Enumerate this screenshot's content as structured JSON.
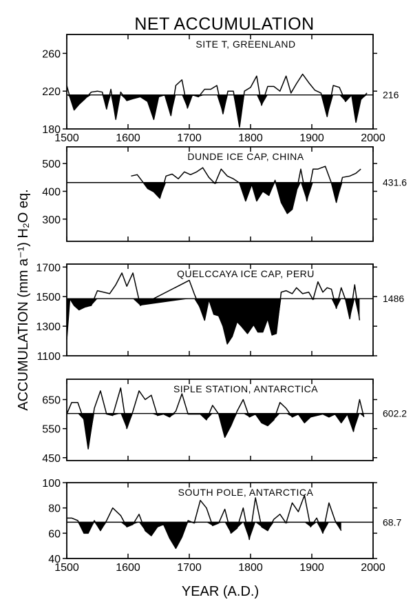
{
  "figure": {
    "title": "NET ACCUMULATION",
    "y_title": "ACCUMULATION (mm a⁻¹) H₂O eq.",
    "x_title": "YEAR (A.D.)"
  },
  "chart_data": [
    {
      "type": "line",
      "title": "SITE T, GREENLAND",
      "mean": 216,
      "mean_label": "216",
      "ylim": [
        180,
        280
      ],
      "yticks": [
        180,
        220,
        260
      ],
      "xlim": [
        1500,
        2000
      ],
      "xticks": [
        1500,
        1600,
        1700,
        1800,
        1900,
        2000
      ],
      "show_x_labels": true,
      "grid": false,
      "fill_below_mean": true,
      "x": [
        1500,
        1505,
        1512,
        1520,
        1530,
        1540,
        1550,
        1558,
        1565,
        1572,
        1580,
        1588,
        1598,
        1608,
        1620,
        1632,
        1642,
        1650,
        1660,
        1670,
        1678,
        1688,
        1697,
        1705,
        1715,
        1725,
        1735,
        1745,
        1755,
        1763,
        1772,
        1782,
        1790,
        1800,
        1810,
        1818,
        1828,
        1838,
        1848,
        1858,
        1866,
        1875,
        1885,
        1895,
        1905,
        1915,
        1925,
        1935,
        1945,
        1955,
        1965,
        1972,
        1980,
        1990
      ],
      "y": [
        226,
        214,
        200,
        206,
        212,
        219,
        220,
        219,
        201,
        222,
        190,
        219,
        210,
        212,
        214,
        209,
        190,
        214,
        216,
        194,
        226,
        232,
        202,
        216,
        214,
        222,
        222,
        226,
        196,
        220,
        220,
        182,
        220,
        224,
        236,
        205,
        225,
        225,
        220,
        236,
        218,
        228,
        238,
        229,
        221,
        218,
        193,
        226,
        224,
        209,
        216,
        187,
        211,
        218
      ]
    },
    {
      "type": "line",
      "title": "DUNDE ICE CAP, CHINA",
      "mean": 431.6,
      "mean_label": "431.6",
      "ylim": [
        220,
        560
      ],
      "yticks": [
        300,
        400,
        500
      ],
      "xlim": [
        1500,
        2000
      ],
      "xticks": [
        1500,
        1600,
        1700,
        1800,
        1900,
        2000
      ],
      "show_x_labels": false,
      "grid": false,
      "fill_below_mean": true,
      "x": [
        1605,
        1615,
        1625,
        1632,
        1642,
        1652,
        1662,
        1672,
        1682,
        1692,
        1702,
        1712,
        1722,
        1732,
        1742,
        1752,
        1762,
        1772,
        1782,
        1792,
        1802,
        1810,
        1820,
        1830,
        1840,
        1850,
        1860,
        1868,
        1875,
        1882,
        1892,
        1902,
        1910,
        1922,
        1932,
        1940,
        1950,
        1962,
        1972,
        1980
      ],
      "y": [
        455,
        460,
        431,
        410,
        398,
        375,
        455,
        462,
        445,
        470,
        460,
        470,
        485,
        450,
        428,
        480,
        455,
        445,
        430,
        365,
        425,
        365,
        400,
        385,
        440,
        360,
        320,
        335,
        400,
        480,
        365,
        480,
        480,
        490,
        430,
        360,
        450,
        455,
        465,
        480
      ]
    },
    {
      "type": "line",
      "title": "QUELCCAYA ICE CAP, PERU",
      "mean": 1486,
      "mean_label": "1486",
      "ylim": [
        1100,
        1720
      ],
      "yticks": [
        1100,
        1300,
        1500,
        1700
      ],
      "xlim": [
        1500,
        2000
      ],
      "xticks": [
        1500,
        1600,
        1700,
        1800,
        1900,
        2000
      ],
      "show_x_labels": false,
      "grid": false,
      "fill_below_mean": true,
      "x": [
        1500,
        1505,
        1512,
        1520,
        1530,
        1540,
        1550,
        1560,
        1570,
        1580,
        1590,
        1598,
        1608,
        1620,
        1700,
        1708,
        1718,
        1725,
        1732,
        1740,
        1748,
        1755,
        1762,
        1770,
        1778,
        1785,
        1795,
        1805,
        1812,
        1820,
        1828,
        1835,
        1842,
        1850,
        1858,
        1868,
        1875,
        1885,
        1895,
        1902,
        1910,
        1918,
        1925,
        1932,
        1940,
        1948,
        1955,
        1962,
        1970,
        1978
      ],
      "y": [
        1210,
        1486,
        1440,
        1410,
        1430,
        1440,
        1540,
        1530,
        1520,
        1580,
        1660,
        1570,
        1660,
        1440,
        1610,
        1520,
        1420,
        1340,
        1480,
        1380,
        1370,
        1300,
        1180,
        1230,
        1330,
        1300,
        1250,
        1310,
        1260,
        1260,
        1350,
        1240,
        1250,
        1530,
        1540,
        1520,
        1560,
        1520,
        1530,
        1480,
        1600,
        1530,
        1560,
        1550,
        1420,
        1560,
        1480,
        1350,
        1580,
        1340
      ]
    },
    {
      "type": "line",
      "title": "SIPLE STATION, ANTARCTICA",
      "mean": 602.2,
      "mean_label": "602.2",
      "ylim": [
        440,
        720
      ],
      "yticks": [
        450,
        550,
        650
      ],
      "xlim": [
        1500,
        2000
      ],
      "xticks": [
        1500,
        1600,
        1700,
        1800,
        1900,
        2000
      ],
      "show_x_labels": false,
      "grid": false,
      "fill_below_mean": true,
      "x": [
        1500,
        1508,
        1518,
        1528,
        1535,
        1545,
        1555,
        1565,
        1575,
        1588,
        1598,
        1608,
        1618,
        1628,
        1638,
        1648,
        1658,
        1668,
        1678,
        1688,
        1698,
        1708,
        1718,
        1728,
        1738,
        1748,
        1758,
        1768,
        1778,
        1788,
        1798,
        1808,
        1818,
        1828,
        1838,
        1848,
        1858,
        1868,
        1878,
        1888,
        1898,
        1908,
        1918,
        1928,
        1938,
        1948,
        1958,
        1968,
        1978,
        1985
      ],
      "y": [
        600,
        640,
        640,
        580,
        480,
        620,
        680,
        600,
        595,
        690,
        550,
        610,
        680,
        650,
        665,
        595,
        600,
        590,
        610,
        670,
        600,
        600,
        600,
        580,
        630,
        600,
        520,
        560,
        610,
        650,
        590,
        600,
        570,
        560,
        580,
        640,
        620,
        590,
        600,
        570,
        590,
        595,
        600,
        590,
        600,
        570,
        600,
        540,
        650,
        590
      ]
    },
    {
      "type": "line",
      "title": "SOUTH POLE, ANTARCTICA",
      "mean": 68.7,
      "mean_label": "68.7",
      "ylim": [
        40,
        100
      ],
      "yticks": [
        40,
        60,
        80,
        100
      ],
      "xlim": [
        1500,
        2000
      ],
      "xticks": [
        1500,
        1600,
        1700,
        1800,
        1900,
        2000
      ],
      "show_x_labels": true,
      "grid": false,
      "fill_below_mean": true,
      "x": [
        1500,
        1508,
        1518,
        1528,
        1535,
        1545,
        1555,
        1565,
        1575,
        1588,
        1598,
        1608,
        1618,
        1628,
        1638,
        1648,
        1658,
        1668,
        1678,
        1688,
        1698,
        1708,
        1718,
        1728,
        1738,
        1748,
        1758,
        1768,
        1778,
        1788,
        1798,
        1808,
        1818,
        1828,
        1838,
        1848,
        1858,
        1868,
        1878,
        1888,
        1898,
        1908,
        1918,
        1928,
        1938,
        1948
      ],
      "y": [
        72,
        72,
        70,
        60,
        60,
        70,
        62,
        70,
        80,
        74,
        65,
        67,
        75,
        62,
        58,
        65,
        67,
        56,
        48,
        57,
        70,
        68,
        86,
        80,
        66,
        68,
        79,
        60,
        64,
        80,
        55,
        88,
        65,
        62,
        71,
        75,
        68,
        84,
        77,
        90,
        65,
        72,
        60,
        84,
        70,
        62
      ]
    }
  ]
}
